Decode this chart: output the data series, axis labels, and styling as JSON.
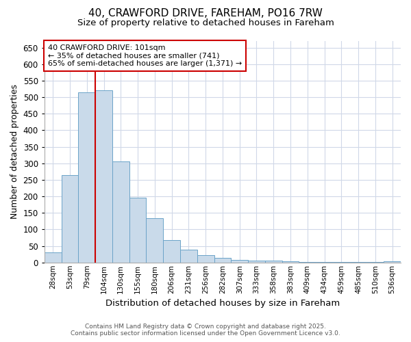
{
  "title": "40, CRAWFORD DRIVE, FAREHAM, PO16 7RW",
  "subtitle": "Size of property relative to detached houses in Fareham",
  "xlabel": "Distribution of detached houses by size in Fareham",
  "ylabel": "Number of detached properties",
  "categories": [
    "28sqm",
    "53sqm",
    "79sqm",
    "104sqm",
    "130sqm",
    "155sqm",
    "180sqm",
    "206sqm",
    "231sqm",
    "256sqm",
    "282sqm",
    "307sqm",
    "333sqm",
    "358sqm",
    "383sqm",
    "409sqm",
    "434sqm",
    "459sqm",
    "485sqm",
    "510sqm",
    "536sqm"
  ],
  "values": [
    30,
    265,
    515,
    520,
    305,
    197,
    133,
    67,
    38,
    22,
    15,
    7,
    5,
    5,
    3,
    1,
    2,
    1,
    1,
    1,
    3
  ],
  "bar_color": "#c9daea",
  "bar_edge_color": "#6ba3c8",
  "bar_width": 1.0,
  "ylim": [
    0,
    670
  ],
  "yticks": [
    0,
    50,
    100,
    150,
    200,
    250,
    300,
    350,
    400,
    450,
    500,
    550,
    600,
    650
  ],
  "vline_x": 2.5,
  "vline_color": "#cc0000",
  "annotation_text": "40 CRAWFORD DRIVE: 101sqm\n← 35% of detached houses are smaller (741)\n65% of semi-detached houses are larger (1,371) →",
  "annotation_box_color": "#ffffff",
  "annotation_box_edge": "#cc0000",
  "footer_line1": "Contains HM Land Registry data © Crown copyright and database right 2025.",
  "footer_line2": "Contains public sector information licensed under the Open Government Licence v3.0.",
  "bg_color": "#ffffff",
  "grid_color": "#d0d8e8"
}
